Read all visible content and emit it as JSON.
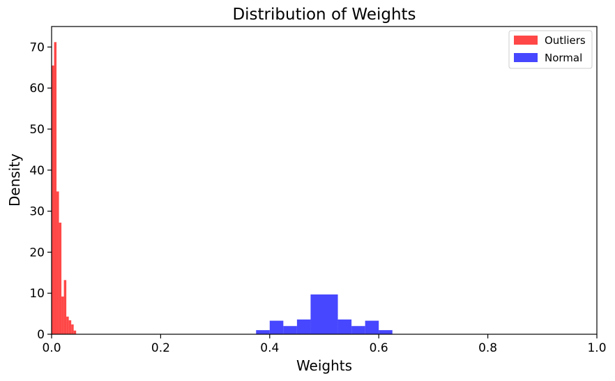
{
  "chart_data": {
    "type": "bar",
    "title": "Distribution of Weights",
    "xlabel": "Weights",
    "ylabel": "Density",
    "xlim": [
      0,
      1.0
    ],
    "ylim": [
      0,
      75
    ],
    "xticks": [
      "0.0",
      "0.2",
      "0.4",
      "0.6",
      "0.8",
      "1.0"
    ],
    "yticks": [
      "0",
      "10",
      "20",
      "30",
      "40",
      "50",
      "60",
      "70"
    ],
    "grid": false,
    "legend_position": "top-right",
    "series": [
      {
        "name": "Outliers",
        "color": "#ff3333",
        "bins": [
          {
            "x0": 0.0,
            "x1": 0.0045,
            "value": 65.5
          },
          {
            "x0": 0.0045,
            "x1": 0.009,
            "value": 71.2
          },
          {
            "x0": 0.009,
            "x1": 0.0135,
            "value": 34.8
          },
          {
            "x0": 0.0135,
            "x1": 0.018,
            "value": 27.2
          },
          {
            "x0": 0.018,
            "x1": 0.0225,
            "value": 9.2
          },
          {
            "x0": 0.0225,
            "x1": 0.027,
            "value": 13.2
          },
          {
            "x0": 0.027,
            "x1": 0.0315,
            "value": 4.3
          },
          {
            "x0": 0.0315,
            "x1": 0.036,
            "value": 3.4
          },
          {
            "x0": 0.036,
            "x1": 0.0405,
            "value": 2.4
          },
          {
            "x0": 0.0405,
            "x1": 0.045,
            "value": 0.9
          }
        ]
      },
      {
        "name": "Normal",
        "color": "#3333ff",
        "bins": [
          {
            "x0": 0.375,
            "x1": 0.4,
            "value": 1.0
          },
          {
            "x0": 0.4,
            "x1": 0.425,
            "value": 3.3
          },
          {
            "x0": 0.425,
            "x1": 0.45,
            "value": 2.0
          },
          {
            "x0": 0.45,
            "x1": 0.475,
            "value": 3.6
          },
          {
            "x0": 0.475,
            "x1": 0.5,
            "value": 9.7
          },
          {
            "x0": 0.5,
            "x1": 0.525,
            "value": 9.7
          },
          {
            "x0": 0.525,
            "x1": 0.55,
            "value": 3.6
          },
          {
            "x0": 0.55,
            "x1": 0.575,
            "value": 2.0
          },
          {
            "x0": 0.575,
            "x1": 0.6,
            "value": 3.3
          },
          {
            "x0": 0.6,
            "x1": 0.625,
            "value": 1.0
          }
        ]
      }
    ]
  }
}
